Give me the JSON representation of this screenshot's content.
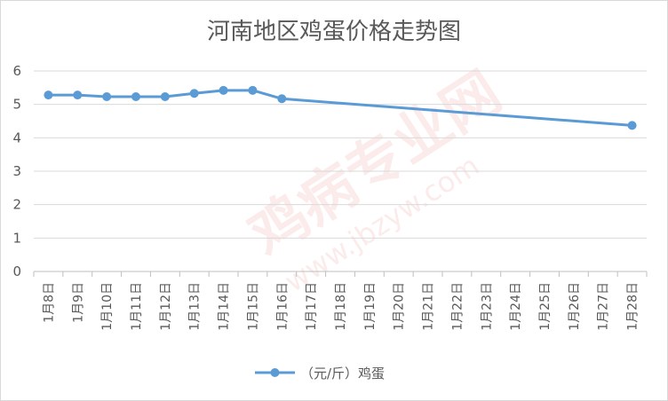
{
  "chart_data": {
    "type": "line",
    "title": "河南地区鸡蛋价格走势图",
    "categories": [
      "1月8日",
      "1月9日",
      "1月10日",
      "1月11日",
      "1月12日",
      "1月13日",
      "1月14日",
      "1月15日",
      "1月16日",
      "1月17日",
      "1月18日",
      "1月19日",
      "1月20日",
      "1月21日",
      "1月22日",
      "1月23日",
      "1月24日",
      "1月25日",
      "1月26日",
      "1月27日",
      "1月28日"
    ],
    "series": [
      {
        "name": "（元/斤）鸡蛋",
        "color": "#5b9bd5",
        "values": [
          5.28,
          5.28,
          5.23,
          5.23,
          5.23,
          5.33,
          5.42,
          5.42,
          5.17,
          null,
          null,
          null,
          null,
          null,
          null,
          null,
          null,
          null,
          null,
          null,
          4.37
        ]
      }
    ],
    "ylim": [
      0,
      6
    ],
    "yticks": [
      0,
      1,
      2,
      3,
      4,
      5,
      6
    ],
    "grid": true,
    "legend": "bottom"
  },
  "watermark": {
    "text_cn": "鸡病专业网",
    "text_url": "www.jbzyw.com"
  }
}
